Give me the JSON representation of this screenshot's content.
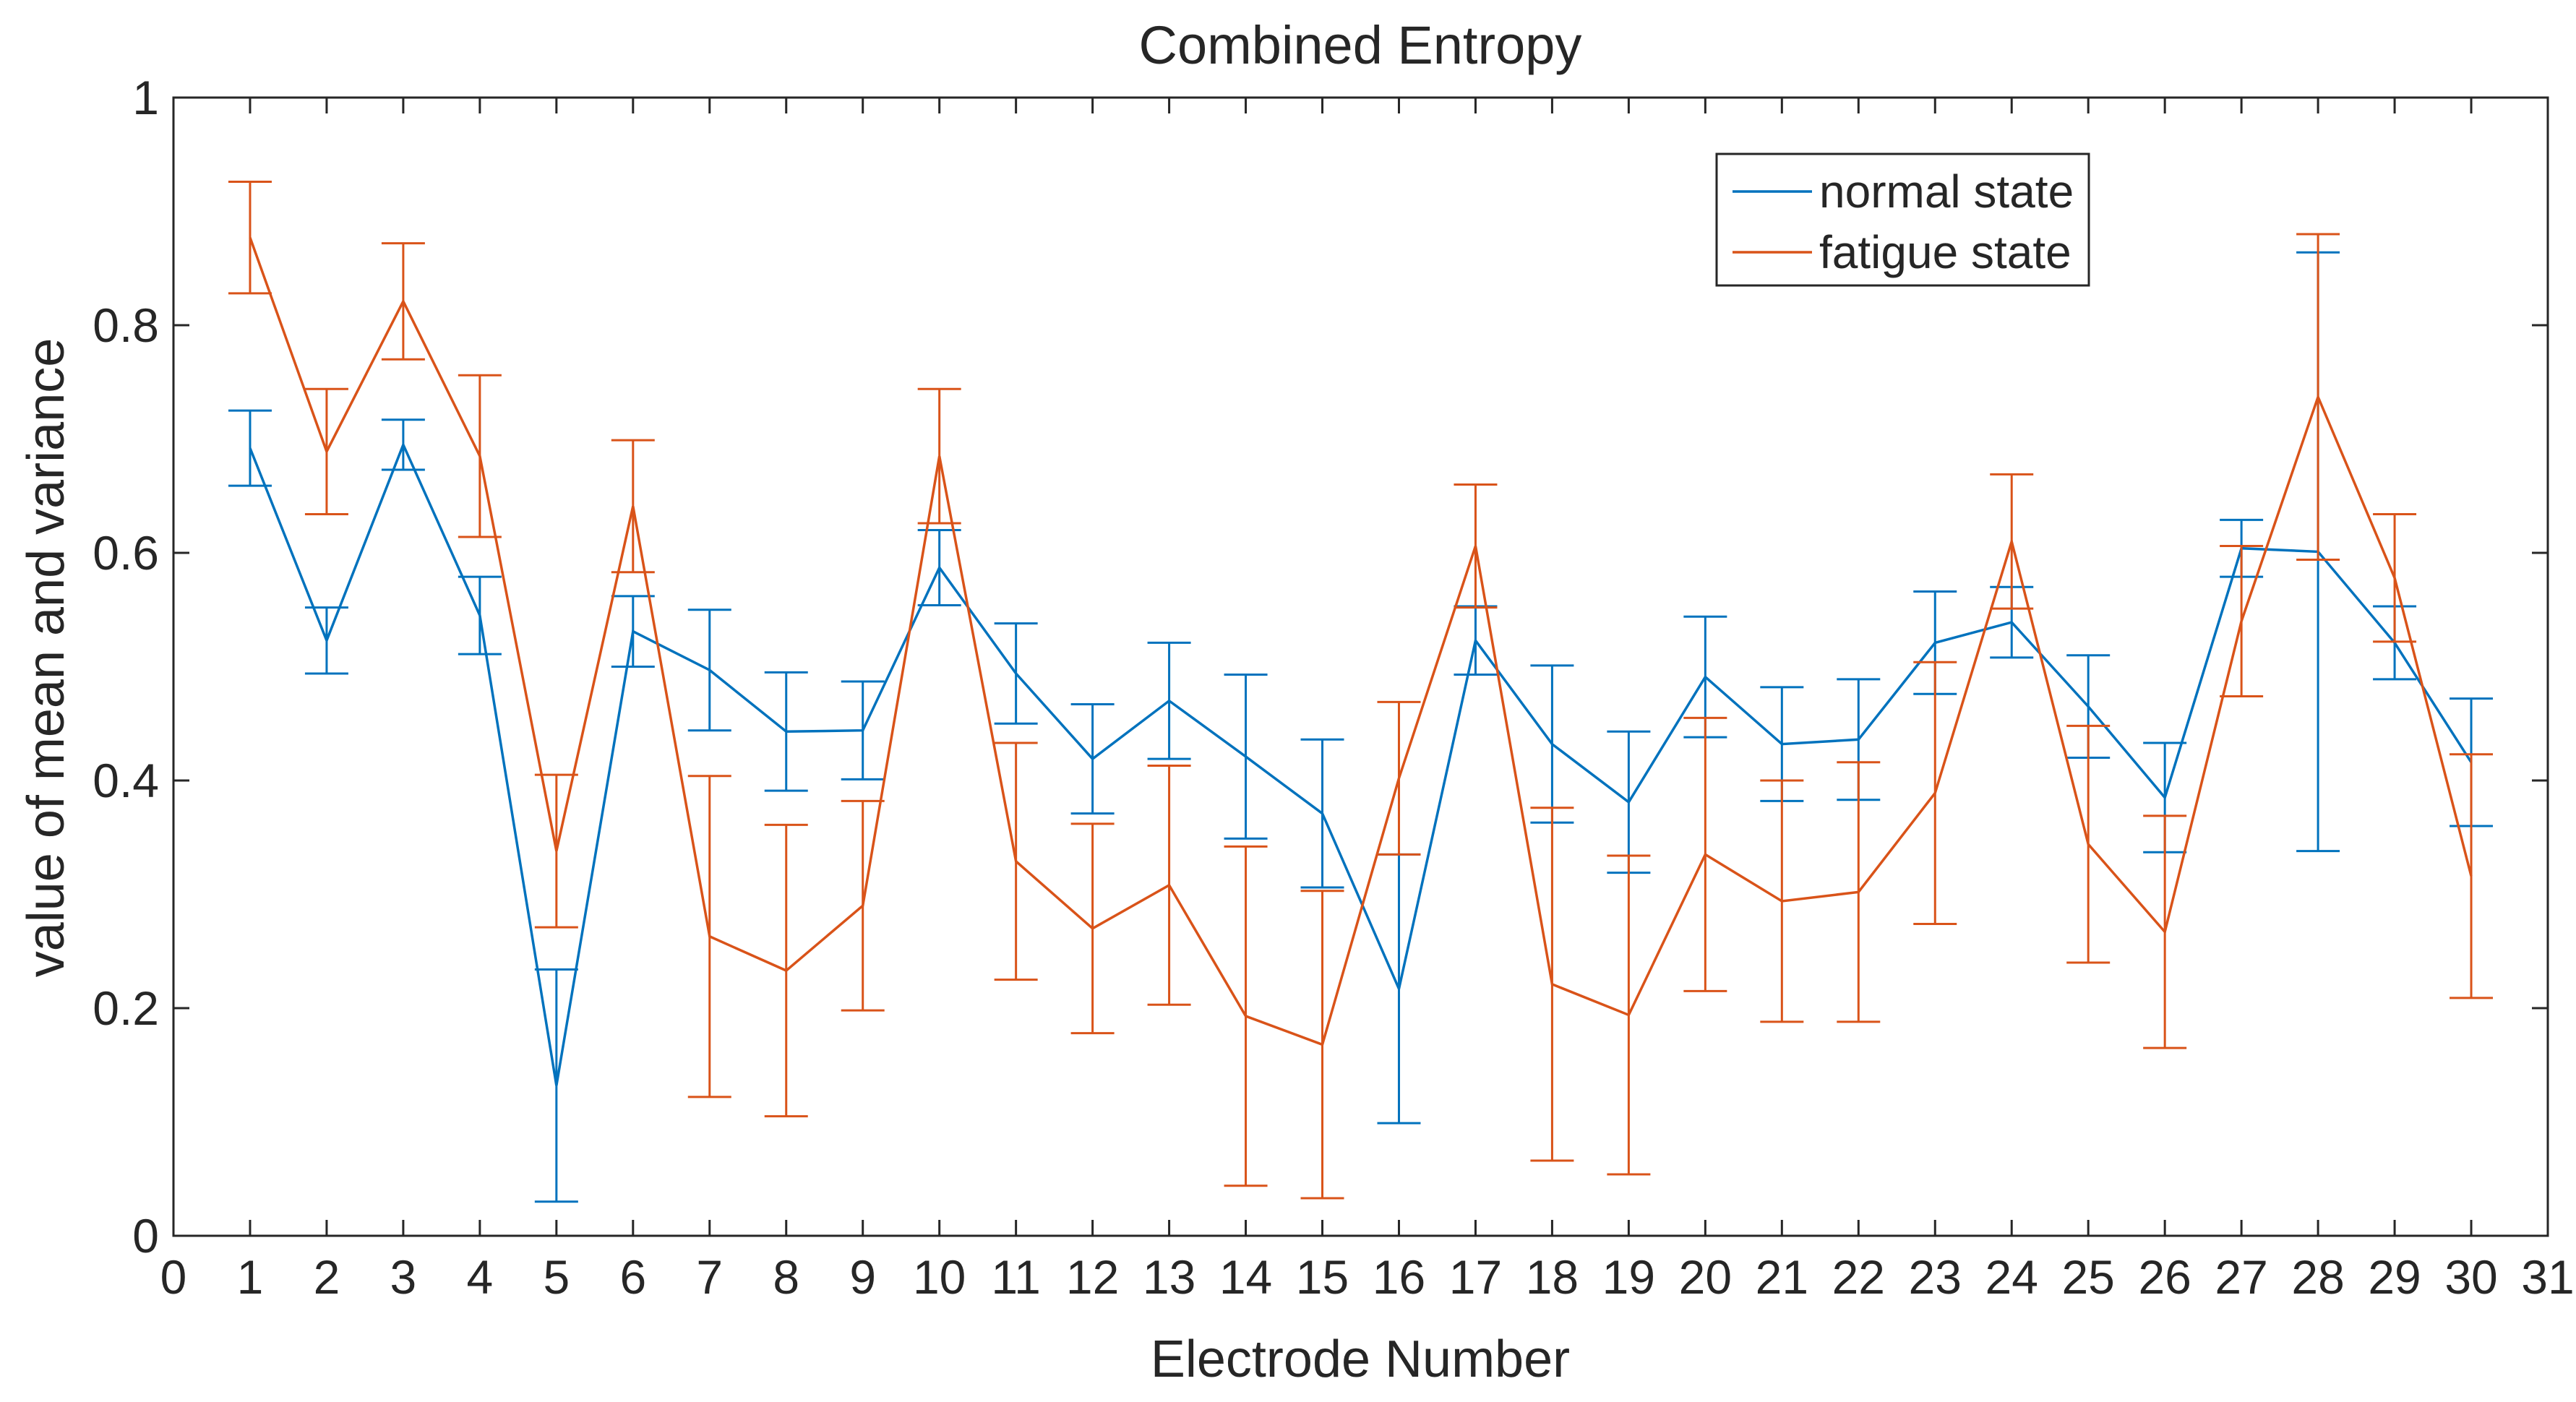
{
  "chart_data": {
    "type": "line",
    "title": "Combined Entropy",
    "xlabel": "Electrode Number",
    "ylabel": "value of mean and variance",
    "xlim": [
      0,
      31
    ],
    "ylim": [
      0,
      1
    ],
    "xticks": [
      0,
      1,
      2,
      3,
      4,
      5,
      6,
      7,
      8,
      9,
      10,
      11,
      12,
      13,
      14,
      15,
      16,
      17,
      18,
      19,
      20,
      21,
      22,
      23,
      24,
      25,
      26,
      27,
      28,
      29,
      30,
      31
    ],
    "yticks": [
      0,
      0.2,
      0.4,
      0.6,
      0.8,
      1
    ],
    "ytick_labels": [
      "0",
      "0.2",
      "0.4",
      "0.6",
      "0.8",
      "1"
    ],
    "grid": false,
    "legend_position": "top-right",
    "x": [
      1,
      2,
      3,
      4,
      5,
      6,
      7,
      8,
      9,
      10,
      11,
      12,
      13,
      14,
      15,
      16,
      17,
      18,
      19,
      20,
      21,
      22,
      23,
      24,
      25,
      26,
      27,
      28,
      29,
      30
    ],
    "series": [
      {
        "name": "normal state",
        "color": "#0072BD",
        "values": [
          0.692,
          0.523,
          0.695,
          0.545,
          0.132,
          0.531,
          0.497,
          0.443,
          0.444,
          0.587,
          0.494,
          0.419,
          0.47,
          0.421,
          0.371,
          0.217,
          0.523,
          0.432,
          0.381,
          0.491,
          0.432,
          0.436,
          0.521,
          0.539,
          0.465,
          0.385,
          0.604,
          0.601,
          0.521,
          0.416
        ],
        "errors": [
          0.033,
          0.029,
          0.022,
          0.034,
          0.102,
          0.031,
          0.053,
          0.052,
          0.043,
          0.033,
          0.044,
          0.048,
          0.051,
          0.072,
          0.065,
          0.118,
          0.03,
          0.069,
          0.062,
          0.053,
          0.05,
          0.053,
          0.045,
          0.031,
          0.045,
          0.048,
          0.025,
          0.263,
          0.032,
          0.056
        ]
      },
      {
        "name": "fatigue state",
        "color": "#D95319",
        "values": [
          0.877,
          0.689,
          0.821,
          0.685,
          0.338,
          0.641,
          0.263,
          0.233,
          0.29,
          0.685,
          0.329,
          0.27,
          0.308,
          0.193,
          0.168,
          0.402,
          0.606,
          0.221,
          0.194,
          0.335,
          0.294,
          0.302,
          0.389,
          0.61,
          0.344,
          0.267,
          0.54,
          0.737,
          0.578,
          0.316
        ],
        "errors": [
          0.049,
          0.055,
          0.051,
          0.071,
          0.067,
          0.058,
          0.141,
          0.128,
          0.092,
          0.059,
          0.104,
          0.092,
          0.105,
          0.149,
          0.135,
          0.067,
          0.054,
          0.155,
          0.14,
          0.12,
          0.106,
          0.114,
          0.115,
          0.059,
          0.104,
          0.102,
          0.066,
          0.143,
          0.056,
          0.107
        ]
      }
    ]
  }
}
